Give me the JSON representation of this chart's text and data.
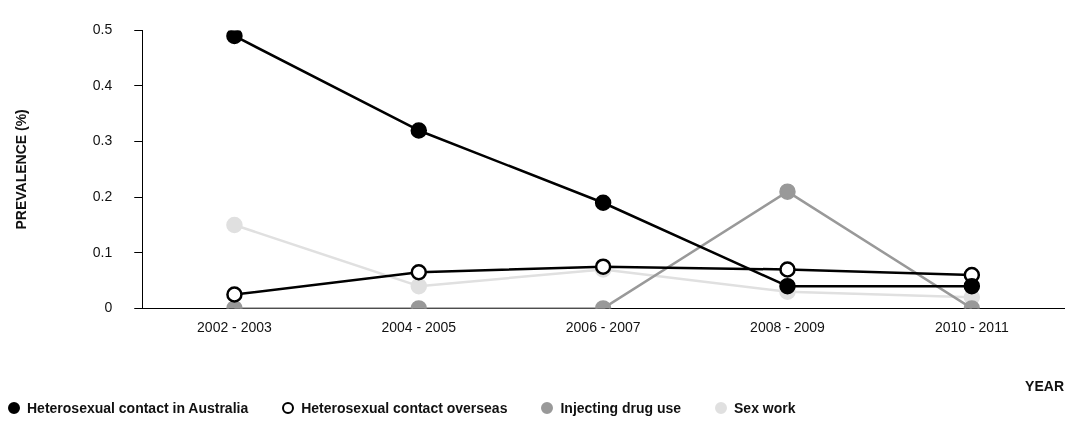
{
  "chart_data": {
    "type": "line",
    "xlabel": "YEAR",
    "ylabel": "PREVALENCE (%)",
    "categories": [
      "2002 - 2003",
      "2004 - 2005",
      "2006 - 2007",
      "2008 - 2009",
      "2010 - 2011"
    ],
    "series": [
      {
        "name": "Heterosexual contact in Australia",
        "color": "#000000",
        "values": [
          0.49,
          0.32,
          0.19,
          0.04,
          0.04
        ]
      },
      {
        "name": "Heterosexual contact overseas",
        "color": "#000000",
        "values": [
          0.025,
          0.065,
          0.075,
          0.07,
          0.06
        ]
      },
      {
        "name": "Injecting drug use",
        "color": "#999999",
        "values": [
          0,
          0,
          0,
          0.21,
          0
        ]
      },
      {
        "name": "Sex work",
        "color": "#e0e0e0",
        "values": [
          0.15,
          0.04,
          0.07,
          0.03,
          0.02
        ]
      }
    ],
    "ylim": [
      0,
      0.5
    ],
    "yticks": [
      0,
      0.1,
      0.2,
      0.3,
      0.4,
      0.5
    ],
    "legend": "bottom",
    "marker": "circle",
    "line_style": "solid"
  }
}
